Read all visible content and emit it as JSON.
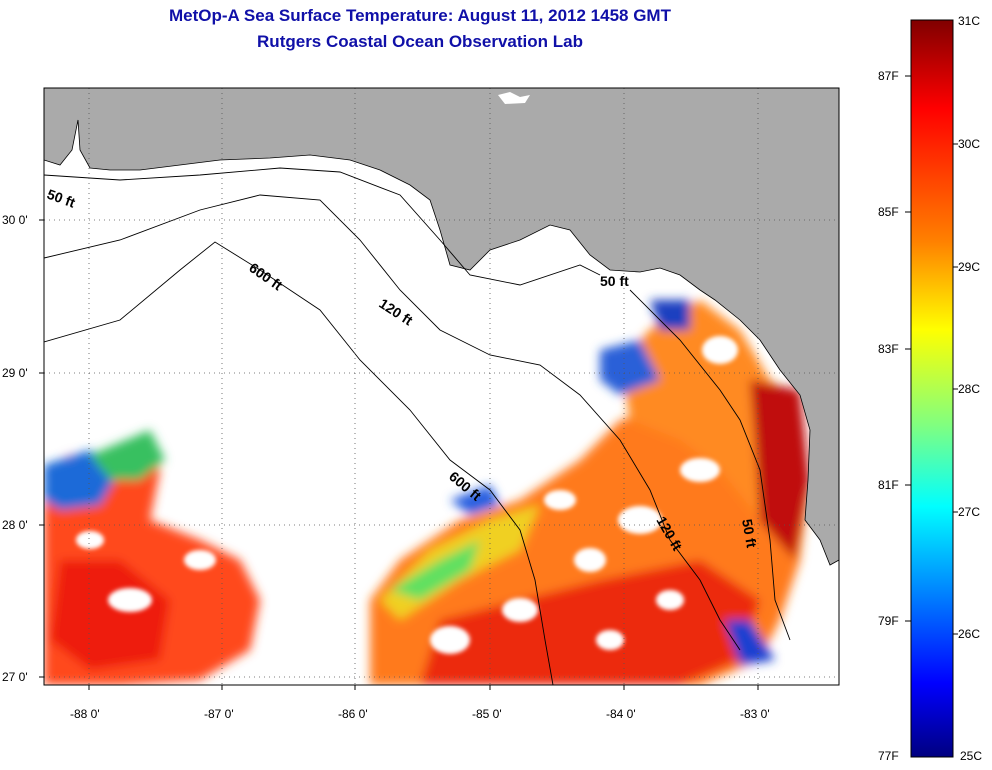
{
  "title": {
    "line1": "MetOp-A Sea Surface Temperature:  August 11, 2012 1458 GMT",
    "line2": "Rutgers Coastal Ocean Observation Lab"
  },
  "axes": {
    "lon_labels": [
      "-88 0'",
      "-87 0'",
      "-86 0'",
      "-85 0'",
      "-84 0'",
      "-83 0'"
    ],
    "lat_labels": [
      "30 0'",
      "29 0'",
      "28 0'",
      "27 0'"
    ]
  },
  "contours": {
    "labels": [
      "50 ft",
      "600 ft",
      "120 ft",
      "50 ft",
      "600 ft",
      "120 ft",
      "50 ft"
    ]
  },
  "colorbar": {
    "fahrenheit": [
      "87F",
      "85F",
      "83F",
      "81F",
      "79F",
      "77F"
    ],
    "celsius": [
      "31C",
      "30C",
      "29C",
      "28C",
      "27C",
      "26C",
      "25C"
    ],
    "colors": [
      "#800000",
      "#ff0000",
      "#ff8000",
      "#ffff00",
      "#80ff80",
      "#00ffff",
      "#0080ff",
      "#0000ff",
      "#000080"
    ]
  },
  "colors": {
    "land": "#aaaaaa",
    "water_no_data": "#ffffff",
    "title": "#1010a8"
  }
}
